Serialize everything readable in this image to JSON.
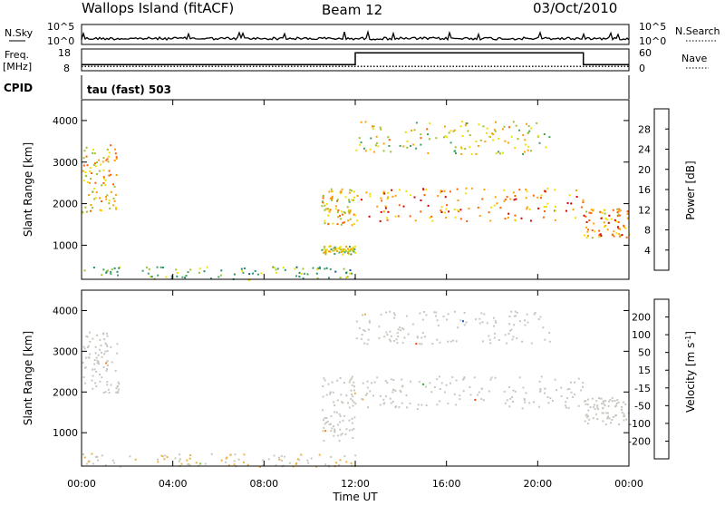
{
  "header": {
    "station": "Wallops Island (fitACF)",
    "beam": "Beam 12",
    "date": "03/Oct/2010"
  },
  "noise_panel": {
    "left_label": "N.Sky",
    "left_ticks": [
      "10^5",
      "10^0"
    ],
    "right_label": "N.Search",
    "right_ticks": [
      "10^5",
      "10^0"
    ]
  },
  "freq_panel": {
    "left_label_top": "Freq.",
    "left_label_unit": "[MHz]",
    "left_ticks": [
      "18",
      "8"
    ],
    "right_label": "Nave",
    "right_ticks": [
      "60",
      "0"
    ]
  },
  "cpid_panel": {
    "label": "CPID",
    "value": "tau (fast) 503"
  },
  "power_panel": {
    "ylabel": "Slant Range [km]",
    "yticks": [
      "4000",
      "3000",
      "2000",
      "1000"
    ],
    "colorbar_label": "Power [dB]",
    "colorbar_ticks": [
      "28",
      "24",
      "20",
      "16",
      "12",
      "8",
      "4"
    ]
  },
  "velocity_panel": {
    "ylabel": "Slant Range [km]",
    "yticks": [
      "4000",
      "3000",
      "2000",
      "1000"
    ],
    "colorbar_label": "Velocity [m s",
    "colorbar_label_sup": "-1",
    "colorbar_label_end": "]",
    "colorbar_ticks": [
      "200",
      "100",
      "50",
      "15",
      "-15",
      "-50",
      "-100",
      "-200"
    ]
  },
  "x_axis": {
    "label": "Time UT",
    "ticks": [
      "00:00",
      "04:00",
      "08:00",
      "12:00",
      "16:00",
      "20:00",
      "00:00"
    ]
  },
  "colors": {
    "power_scale": [
      "#d00000",
      "#ff6000",
      "#ffa000",
      "#f0e000",
      "#a0c030",
      "#40a060",
      "#209070",
      "#205090",
      "#0000e0"
    ],
    "velocity_scale": [
      "#2030a0",
      "#1060c0",
      "#30a030",
      "#80d040",
      "#c8c8c0",
      "#f0b040",
      "#ff8000",
      "#ff4000",
      "#e00000"
    ]
  },
  "chart_data": [
    {
      "type": "line",
      "title": "N.Sky / N.Search",
      "x_range_hours": [
        0,
        24
      ],
      "y_scale": "log"
    },
    {
      "type": "line",
      "title": "Freq. / Nave",
      "x_range_hours": [
        0,
        24
      ],
      "series": [
        {
          "name": "Freq.",
          "unit": "MHz",
          "points": [
            [
              0,
              10.8
            ],
            [
              12,
              10.8
            ],
            [
              12,
              16.2
            ],
            [
              22,
              16.2
            ],
            [
              22,
              10.8
            ],
            [
              24,
              10.8
            ]
          ]
        },
        {
          "name": "Nave",
          "unit": "",
          "points": [
            [
              0,
              12
            ],
            [
              24,
              12
            ]
          ]
        }
      ],
      "ylim_freq": [
        8,
        18
      ],
      "ylim_nave": [
        0,
        60
      ]
    },
    {
      "type": "heatmap",
      "variable": "Power",
      "unit": "dB",
      "x_range_hours": [
        0,
        24
      ],
      "y_range_km": [
        180,
        4500
      ],
      "color_range": [
        0,
        30
      ],
      "echo_regions": [
        {
          "t": [
            0,
            1.6
          ],
          "range_km": [
            1800,
            3500
          ],
          "power_db": 20
        },
        {
          "t": [
            10.5,
            12
          ],
          "range_km": [
            800,
            1000
          ],
          "power_db": 18
        },
        {
          "t": [
            10.5,
            12
          ],
          "range_km": [
            1500,
            2400
          ],
          "power_db": 20
        },
        {
          "t": [
            12,
            22
          ],
          "range_km": [
            1600,
            2400
          ],
          "power_db": 24
        },
        {
          "t": [
            12,
            20.5
          ],
          "range_km": [
            3200,
            4000
          ],
          "power_db": 18
        },
        {
          "t": [
            22,
            24
          ],
          "range_km": [
            1200,
            1900
          ],
          "power_db": 22
        },
        {
          "t": [
            0,
            12
          ],
          "range_km": [
            180,
            500
          ],
          "power_db": 12
        }
      ]
    },
    {
      "type": "heatmap",
      "variable": "Velocity",
      "unit": "m s^-1",
      "x_range_hours": [
        0,
        24
      ],
      "y_range_km": [
        180,
        4500
      ],
      "color_range": [
        -250,
        250
      ],
      "echo_regions": [
        {
          "t": [
            0,
            1.6
          ],
          "range_km": [
            2000,
            3500
          ],
          "velocity": 0
        },
        {
          "t": [
            10.5,
            12
          ],
          "range_km": [
            800,
            2400
          ],
          "velocity": 0
        },
        {
          "t": [
            12,
            22
          ],
          "range_km": [
            1600,
            2400
          ],
          "velocity": 0
        },
        {
          "t": [
            12,
            20.5
          ],
          "range_km": [
            3200,
            4000
          ],
          "velocity": 0
        },
        {
          "t": [
            22,
            24
          ],
          "range_km": [
            1200,
            1900
          ],
          "velocity": 0
        },
        {
          "t": [
            0,
            12
          ],
          "range_km": [
            180,
            500
          ],
          "velocity": -30
        }
      ]
    }
  ]
}
